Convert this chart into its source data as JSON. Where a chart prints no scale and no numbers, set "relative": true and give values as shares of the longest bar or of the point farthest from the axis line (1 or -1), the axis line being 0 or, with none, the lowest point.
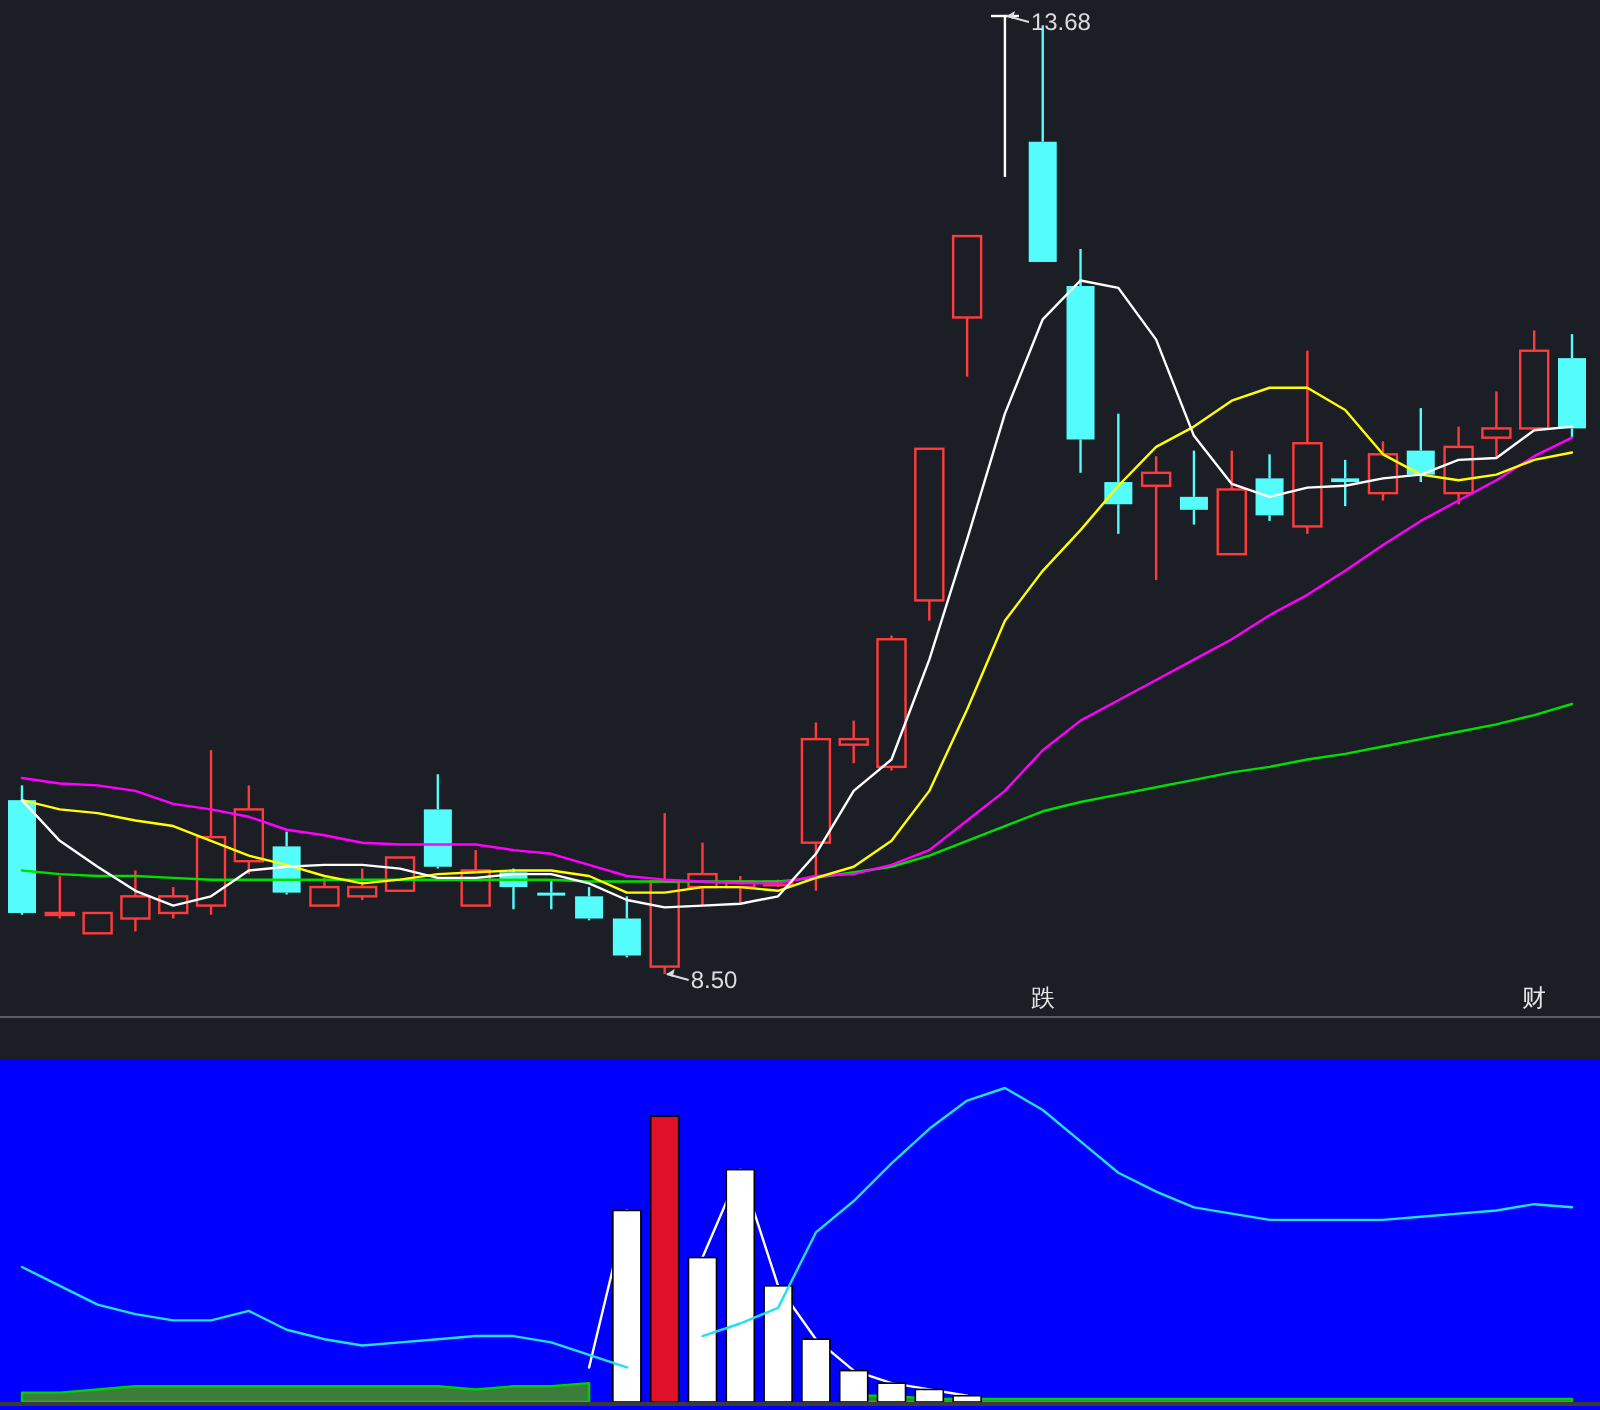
{
  "chart_data": [
    {
      "type": "candlestick",
      "categories": [
        null,
        null,
        null,
        null,
        null,
        null,
        null,
        null,
        null,
        null,
        null,
        null,
        null,
        null,
        null,
        null,
        null,
        null,
        null,
        null,
        null,
        null,
        null,
        null,
        null,
        null,
        null,
        "跌",
        null,
        null,
        null,
        null,
        null,
        null,
        null,
        null,
        null,
        null,
        null,
        null,
        "财",
        null
      ],
      "ohlc": [
        [
          9.44,
          9.52,
          8.82,
          8.83
        ],
        [
          8.82,
          9.03,
          8.8,
          8.83
        ],
        [
          8.72,
          8.83,
          8.72,
          8.83
        ],
        [
          8.8,
          9.06,
          8.73,
          8.92
        ],
        [
          8.83,
          8.97,
          8.8,
          8.92
        ],
        [
          8.87,
          9.71,
          8.82,
          9.24
        ],
        [
          9.11,
          9.52,
          9.04,
          9.39
        ],
        [
          9.19,
          9.27,
          8.93,
          8.94
        ],
        [
          8.87,
          9.02,
          8.87,
          8.97
        ],
        [
          8.92,
          9.07,
          8.9,
          8.97
        ],
        [
          8.95,
          9.13,
          8.95,
          9.13
        ],
        [
          9.39,
          9.58,
          9.07,
          9.08
        ],
        [
          8.87,
          9.17,
          8.87,
          9.06
        ],
        [
          9.05,
          9.07,
          8.85,
          8.97
        ],
        [
          8.94,
          9.01,
          8.85,
          8.93
        ],
        [
          8.92,
          8.97,
          8.79,
          8.8
        ],
        [
          8.8,
          8.92,
          8.59,
          8.6
        ],
        [
          8.54,
          9.37,
          8.5,
          9.0
        ],
        [
          8.97,
          9.21,
          8.87,
          9.04
        ],
        [
          8.97,
          9.03,
          8.88,
          9.0
        ],
        [
          8.98,
          9.01,
          8.97,
          9.0
        ],
        [
          9.21,
          9.86,
          8.95,
          9.77
        ],
        [
          9.74,
          9.87,
          9.64,
          9.77
        ],
        [
          9.62,
          10.33,
          9.6,
          10.31
        ],
        [
          10.52,
          11.34,
          10.41,
          11.34
        ],
        [
          12.05,
          12.49,
          11.73,
          12.49
        ],
        [
          13.68,
          13.68,
          12.81,
          13.68
        ],
        [
          13.0,
          13.63,
          12.35,
          12.35
        ],
        [
          12.22,
          12.42,
          11.21,
          11.39
        ],
        [
          11.16,
          11.53,
          10.88,
          11.04
        ],
        [
          11.14,
          11.3,
          10.63,
          11.21
        ],
        [
          11.08,
          11.33,
          10.93,
          11.01
        ],
        [
          10.77,
          11.33,
          10.77,
          11.12
        ],
        [
          11.18,
          11.31,
          10.95,
          10.98
        ],
        [
          10.92,
          11.87,
          10.88,
          11.37
        ],
        [
          11.18,
          11.28,
          11.03,
          11.16
        ],
        [
          11.1,
          11.38,
          11.06,
          11.31
        ],
        [
          11.33,
          11.56,
          11.16,
          11.2
        ],
        [
          11.1,
          11.46,
          11.04,
          11.35
        ],
        [
          11.4,
          11.65,
          11.29,
          11.45
        ],
        [
          11.45,
          11.98,
          11.45,
          11.87
        ],
        [
          11.83,
          11.96,
          11.4,
          11.45
        ]
      ],
      "series": [
        {
          "type": "line",
          "color": "#00e000",
          "values": [
            9.06,
            9.04,
            9.03,
            9.03,
            9.02,
            9.01,
            9.01,
            9.01,
            9.01,
            9.01,
            9.01,
            9.01,
            9.01,
            9.01,
            9.01,
            9.0,
            9.0,
            9.0,
            9.0,
            9.0,
            9.0,
            9.02,
            9.05,
            9.08,
            9.14,
            9.22,
            9.3,
            9.38,
            9.43,
            9.47,
            9.51,
            9.55,
            9.59,
            9.62,
            9.66,
            9.69,
            9.73,
            9.77,
            9.81,
            9.85,
            9.9,
            9.96
          ]
        },
        {
          "type": "line",
          "color": "#ff00ff",
          "values": [
            9.56,
            9.53,
            9.52,
            9.49,
            9.42,
            9.39,
            9.35,
            9.28,
            9.25,
            9.21,
            9.2,
            9.2,
            9.2,
            9.17,
            9.15,
            9.09,
            9.03,
            9.01,
            9.0,
            8.99,
            8.99,
            9.03,
            9.04,
            9.09,
            9.17,
            9.33,
            9.49,
            9.71,
            9.87,
            9.98,
            10.09,
            10.2,
            10.31,
            10.44,
            10.55,
            10.68,
            10.82,
            10.95,
            11.06,
            11.17,
            11.3,
            11.4
          ]
        },
        {
          "type": "line",
          "color": "#ffff00",
          "values": [
            9.44,
            9.39,
            9.37,
            9.33,
            9.3,
            9.22,
            9.14,
            9.09,
            9.03,
            8.99,
            9.01,
            9.04,
            9.05,
            9.06,
            9.06,
            9.03,
            8.94,
            8.94,
            8.97,
            8.97,
            8.95,
            9.02,
            9.08,
            9.22,
            9.49,
            9.93,
            10.41,
            10.68,
            10.9,
            11.14,
            11.35,
            11.46,
            11.6,
            11.67,
            11.67,
            11.55,
            11.31,
            11.2,
            11.17,
            11.2,
            11.28,
            11.32
          ]
        },
        {
          "type": "line",
          "color": "#ffffff",
          "values": [
            9.44,
            9.22,
            9.08,
            8.95,
            8.87,
            8.92,
            9.06,
            9.08,
            9.09,
            9.09,
            9.07,
            9.02,
            9.02,
            9.04,
            9.04,
            8.99,
            8.9,
            8.86,
            8.87,
            8.88,
            8.92,
            9.15,
            9.49,
            9.66,
            10.2,
            10.85,
            11.53,
            12.04,
            12.25,
            12.21,
            11.93,
            11.41,
            11.15,
            11.08,
            11.13,
            11.14,
            11.18,
            11.2,
            11.28,
            11.29,
            11.44,
            11.46
          ]
        }
      ],
      "annotations": [
        "13.68",
        "8.50"
      ]
    },
    {
      "type": "bar",
      "relative": true,
      "categories": [
        null,
        null,
        null,
        null,
        null,
        null,
        null,
        null,
        null,
        null,
        null,
        null,
        null,
        null,
        null,
        null,
        null,
        null,
        null,
        null,
        null,
        null,
        null,
        null,
        null,
        null,
        null,
        null,
        null,
        null,
        null,
        null,
        null,
        null,
        null,
        null,
        null,
        null,
        null,
        null,
        null,
        null
      ],
      "series": [
        {
          "type": "area",
          "color": "#3c7d3c",
          "values": [
            0.03,
            0.03,
            0.04,
            0.05,
            0.05,
            0.05,
            0.05,
            0.05,
            0.05,
            0.05,
            0.05,
            0.05,
            0.04,
            0.05,
            0.05,
            0.06,
            null,
            null,
            null,
            null,
            null,
            null,
            0.02,
            0.02,
            0.01,
            0.01,
            0.01,
            0.01,
            0.01,
            0.01,
            0.01,
            0.01,
            0.01,
            0.01,
            0.01,
            0.01,
            0.01,
            0.01,
            0.01,
            0.01,
            0.01,
            0.01
          ]
        },
        {
          "type": "line",
          "color": "#ffffff",
          "values": [
            null,
            null,
            null,
            null,
            null,
            null,
            null,
            null,
            null,
            null,
            null,
            null,
            null,
            null,
            null,
            0.11,
            0.61,
            null,
            0.46,
            0.74,
            0.37,
            0.2,
            0.1,
            0.06,
            0.04,
            0.02,
            null,
            null,
            null,
            null,
            null,
            null,
            null,
            null,
            null,
            null,
            null,
            null,
            null,
            null,
            null,
            null
          ]
        },
        {
          "type": "bar",
          "colors": [
            null,
            null,
            null,
            null,
            null,
            null,
            null,
            null,
            null,
            null,
            null,
            null,
            null,
            null,
            null,
            null,
            "#ffffff",
            "#e0102a",
            "#ffffff",
            "#ffffff",
            "#ffffff",
            "#ffffff",
            "#ffffff",
            "#ffffff",
            "#ffffff",
            "#ffffff",
            null,
            null,
            null,
            null,
            null,
            null,
            null,
            null,
            null,
            null,
            null,
            null,
            null,
            null,
            null,
            null
          ],
          "values": [
            null,
            null,
            null,
            null,
            null,
            null,
            null,
            null,
            null,
            null,
            null,
            null,
            null,
            null,
            null,
            null,
            0.61,
            0.91,
            0.46,
            0.74,
            0.37,
            0.2,
            0.1,
            0.06,
            0.04,
            0.02,
            null,
            null,
            null,
            null,
            null,
            null,
            null,
            null,
            null,
            null,
            null,
            null,
            null,
            null,
            null,
            null
          ]
        },
        {
          "type": "line",
          "color": "#22e0f0",
          "values": [
            0.43,
            0.37,
            0.31,
            0.28,
            0.26,
            0.26,
            0.29,
            0.23,
            0.2,
            0.18,
            0.19,
            0.2,
            0.21,
            0.21,
            0.19,
            0.15,
            0.11,
            null,
            0.21,
            0.25,
            0.3,
            0.54,
            0.64,
            0.76,
            0.87,
            0.96,
            1.0,
            0.93,
            0.83,
            0.73,
            0.67,
            0.62,
            0.6,
            0.58,
            0.58,
            0.58,
            0.58,
            0.59,
            0.6,
            0.61,
            0.63,
            0.62
          ]
        }
      ]
    }
  ]
}
